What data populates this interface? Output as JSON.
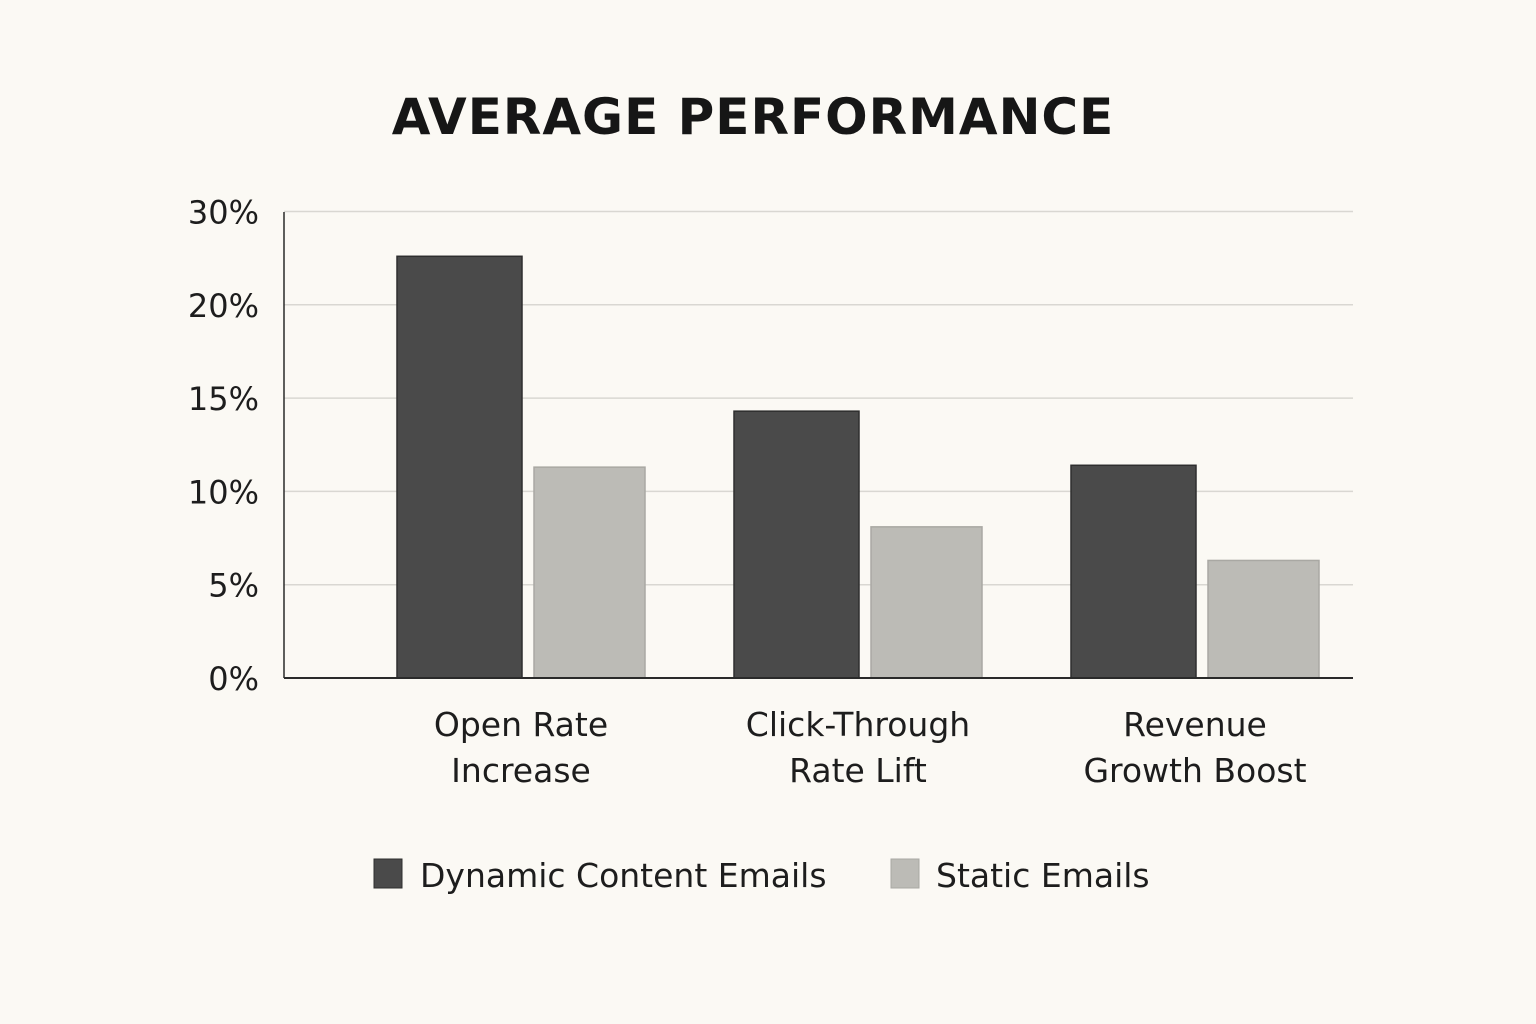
{
  "chart_data": {
    "type": "bar",
    "title": "AVERAGE PERFORMANCE",
    "xlabel": "",
    "ylabel": "",
    "categories": [
      [
        "Open Rate",
        "Increase"
      ],
      [
        "Click-Through",
        "Rate Lift"
      ],
      [
        "Revenue",
        "Growth Boost"
      ]
    ],
    "series": [
      {
        "name": "Dynamic Content Emails",
        "color": "#4a4a4a",
        "values": [
          22.6,
          14.3,
          11.4
        ]
      },
      {
        "name": "Static Emails",
        "color": "#bcbbb6",
        "values": [
          11.3,
          8.1,
          6.3
        ]
      }
    ],
    "yticks": [
      {
        "value": 0,
        "label": "0%"
      },
      {
        "value": 5,
        "label": "5%"
      },
      {
        "value": 10,
        "label": "10%"
      },
      {
        "value": 15,
        "label": "15%"
      },
      {
        "value": 20,
        "label": "20%"
      },
      {
        "value": 30,
        "label": "30%"
      }
    ],
    "ylim": [
      0,
      25
    ],
    "grid": true,
    "legend_position": "bottom-center"
  }
}
